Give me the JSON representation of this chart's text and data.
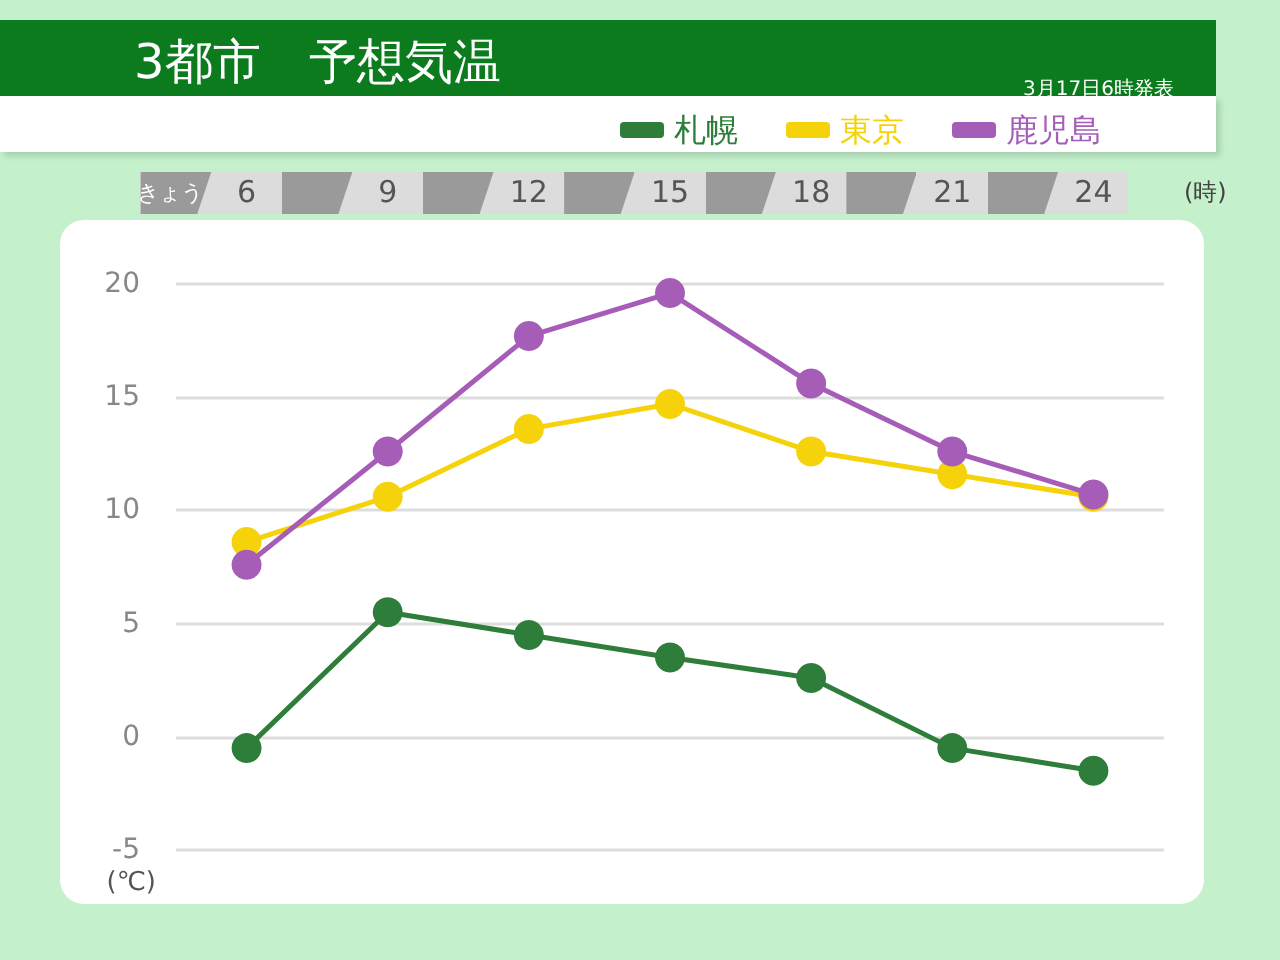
{
  "chart_data": {
    "type": "line",
    "title": "3都市　予想気温",
    "subtitle": "3月17日6時発表",
    "xlabel": "(時)",
    "ylabel": "(℃)",
    "annotations": [
      "きょう"
    ],
    "categories": [
      "6",
      "9",
      "12",
      "15",
      "18",
      "21",
      "24"
    ],
    "series": [
      {
        "name": "札幌",
        "color": "#2e7d3a",
        "values": [
          -0.5,
          5.5,
          4.5,
          3.5,
          2.6,
          -0.5,
          -1.5
        ]
      },
      {
        "name": "東京",
        "color": "#f5d20a",
        "values": [
          8.6,
          10.6,
          13.6,
          14.7,
          12.6,
          11.6,
          10.6
        ]
      },
      {
        "name": "鹿児島",
        "color": "#a65db8",
        "values": [
          7.6,
          12.6,
          17.7,
          19.6,
          15.6,
          12.6,
          10.7
        ]
      }
    ],
    "ylim": [
      -5,
      20
    ],
    "yticks": [
      -5,
      0,
      5,
      10,
      15,
      20
    ],
    "grid": "y",
    "legend": "top right",
    "marker": "circle",
    "line_style": "solid"
  }
}
